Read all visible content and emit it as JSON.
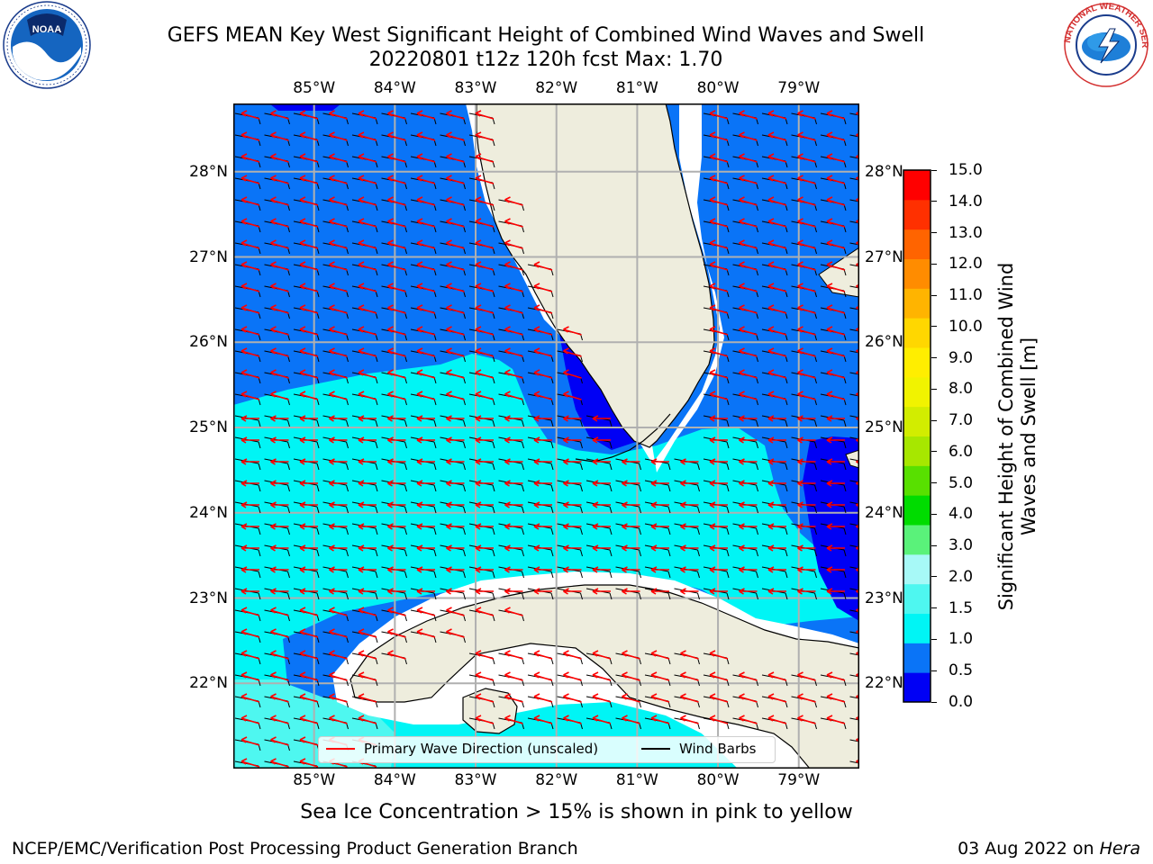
{
  "header": {
    "title_line1": "GEFS MEAN Key West Significant Height of Combined Wind Waves and Swell",
    "title_line2": "20220801 t12z 120h fcst   Max: 1.70"
  },
  "logos": {
    "left": {
      "name": "noaa-logo",
      "text": "NOAA"
    },
    "right": {
      "name": "nws-logo",
      "text": "NATIONAL WEATHER SERVICE"
    }
  },
  "map": {
    "lon_labels": [
      "85°W",
      "84°W",
      "83°W",
      "82°W",
      "81°W",
      "80°W",
      "79°W"
    ],
    "lat_labels": [
      "28°N",
      "27°N",
      "26°N",
      "25°N",
      "24°N",
      "23°N",
      "22°N"
    ],
    "extent": {
      "lon_min": -86.0,
      "lon_max": -78.25,
      "lat_min": 21.0,
      "lat_max": 28.8
    },
    "colors": {
      "land": "#eeeddd",
      "ice_white": "#ffffff",
      "band_0_0_5": "#0000f5",
      "band_0_5_1_0": "#0a74f7",
      "band_1_0_1_5": "#00f5f5",
      "band_1_5_2_0": "#4ef7f0",
      "gridline": "#b0b0b0",
      "wave_arrow": "#ff0000",
      "wind_barb": "#000000"
    },
    "legend": {
      "wave_label": "Primary Wave Direction (unscaled)",
      "barb_label": "Wind Barbs"
    }
  },
  "colorbar": {
    "ticks": [
      "15.0",
      "14.0",
      "13.0",
      "12.0",
      "11.0",
      "10.0",
      "9.0",
      "8.0",
      "7.0",
      "6.0",
      "5.0",
      "4.0",
      "3.0",
      "2.0",
      "1.5",
      "1.0",
      "0.5",
      "0.0"
    ],
    "colors_bottom_to_top": [
      "#0000f5",
      "#0a74f7",
      "#00f5f5",
      "#4ef7f0",
      "#a7f9f7",
      "#5af27a",
      "#00dc00",
      "#58e000",
      "#a7e700",
      "#d2ed00",
      "#f1f300",
      "#ffee00",
      "#ffd700",
      "#ffb400",
      "#ff8c00",
      "#ff6400",
      "#ff3000",
      "#ff0000"
    ],
    "label": "Significant Height of Combined Wind Waves and Swell [m]"
  },
  "notes": {
    "sea_ice": "Sea Ice Concentration > 15% is shown in pink to yellow"
  },
  "footer": {
    "left": "NCEP/EMC/Verification Post Processing Product Generation Branch",
    "date": "03 Aug 2022 on ",
    "host": "Hera"
  }
}
